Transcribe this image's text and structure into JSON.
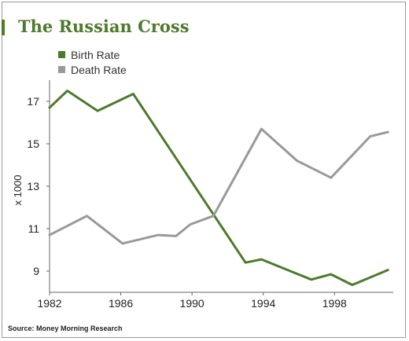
{
  "chart_data": {
    "type": "line",
    "title": "The Russian Cross",
    "ylabel": "x 1000",
    "xlabel": "",
    "xlim": [
      1982,
      2001.3
    ],
    "ylim": [
      8,
      18
    ],
    "x_ticks": [
      1982,
      1986,
      1990,
      1994,
      1998
    ],
    "y_ticks": [
      9,
      11,
      13,
      15,
      17
    ],
    "legend_position": "top-left",
    "grid": false,
    "series": [
      {
        "name": "Birth Rate",
        "color": "#4e7a2c",
        "points": [
          [
            1982,
            16.7
          ],
          [
            1983,
            17.5
          ],
          [
            1984.7,
            16.55
          ],
          [
            1986.7,
            17.35
          ],
          [
            1993,
            9.4
          ],
          [
            1993.9,
            9.55
          ],
          [
            1996.7,
            8.6
          ],
          [
            1997.8,
            8.85
          ],
          [
            1999,
            8.35
          ],
          [
            2001,
            9.05
          ]
        ]
      },
      {
        "name": "Death Rate",
        "color": "#999999",
        "points": [
          [
            1982,
            10.7
          ],
          [
            1984.1,
            11.6
          ],
          [
            1986.1,
            10.3
          ],
          [
            1988.1,
            10.7
          ],
          [
            1989.1,
            10.65
          ],
          [
            1989.9,
            11.2
          ],
          [
            1991.2,
            11.6
          ],
          [
            1993.9,
            15.7
          ],
          [
            1995.9,
            14.2
          ],
          [
            1997.8,
            13.4
          ],
          [
            2000,
            15.35
          ],
          [
            2001,
            15.55
          ]
        ]
      }
    ]
  },
  "source": "Source: Money Morning Research"
}
